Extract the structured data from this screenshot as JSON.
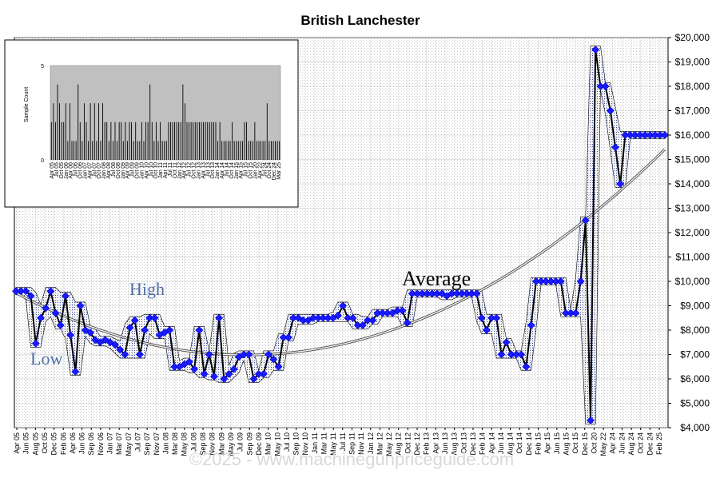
{
  "chart_data": [
    {
      "type": "line",
      "title": "British Lanchester",
      "ylim": [
        4000,
        20000
      ],
      "y_ticks": [
        "$4,000",
        "$5,000",
        "$6,000",
        "$7,000",
        "$8,000",
        "$9,000",
        "$10,000",
        "$11,000",
        "$12,000",
        "$13,000",
        "$14,000",
        "$15,000",
        "$16,000",
        "$17,000",
        "$18,000",
        "$19,000",
        "$20,000"
      ],
      "x_ticks": [
        "Apr 05",
        "Jun 05",
        "Aug 05",
        "Oct 05",
        "Dec 05",
        "Feb 06",
        "Apr 06",
        "Jun 06",
        "Sep 06",
        "Nov 06",
        "Jan 07",
        "Mar 07",
        "May 07",
        "Jul 07",
        "Sep 07",
        "Nov 07",
        "Jan 08",
        "Mar 08",
        "May 08",
        "Jul 08",
        "Sep 08",
        "Nov 08",
        "Mar 09",
        "May 09",
        "Jul 09",
        "Sep 09",
        "Dec 09",
        "Mar 10",
        "May 10",
        "Jul 10",
        "Sep 10",
        "Nov 10",
        "Jan 11",
        "Mar 11",
        "May 11",
        "Jul 11",
        "Sep 11",
        "Nov 11",
        "Jan 12",
        "Mar 12",
        "May 12",
        "Aug 12",
        "Oct 12",
        "Dec 12",
        "Feb 13",
        "Apr 13",
        "Jun 13",
        "Aug 13",
        "Oct 13",
        "Dec 13",
        "Feb 14",
        "Apr 14",
        "Jun 14",
        "Aug 14",
        "Oct 14",
        "Dec 14",
        "Feb 15",
        "Apr 15",
        "Jun 15",
        "Aug 15",
        "Oct 15",
        "Dec 15",
        "Oct 20",
        "May 22",
        "Apr 24",
        "Jun 24",
        "Aug 24",
        "Oct 24",
        "Dec 24",
        "Feb 25"
      ],
      "grid": true,
      "annotations": [
        "High",
        "Low",
        "Average"
      ],
      "watermark": "©2025 - www.machinegunpriceguide.com",
      "series": [
        {
          "values": [
            9600,
            9600,
            9600,
            9400,
            7450,
            8500,
            8900,
            9600,
            8700,
            8200,
            9400,
            7800,
            6300,
            9000,
            8000,
            7900,
            7600,
            7500,
            7600,
            7500,
            7400,
            7200,
            7000,
            8100,
            8400,
            7000,
            8000,
            8500,
            8500,
            7800,
            7900,
            8000,
            6500,
            6500,
            6600,
            6700,
            6400,
            8000,
            6200,
            7000,
            6100,
            8500,
            6000,
            6200,
            6400,
            6900,
            7000,
            7000,
            6000,
            6200,
            6200,
            7000,
            6800,
            6500,
            7700,
            7700,
            8500,
            8500,
            8400,
            8400,
            8500,
            8500,
            8500,
            8500,
            8500,
            8600,
            9000,
            8500,
            8500,
            8200,
            8200,
            8400,
            8400,
            8700,
            8700,
            8700,
            8700,
            8800,
            8800,
            8300,
            9500,
            9500,
            9500,
            9500,
            9500,
            9500,
            9500,
            9400,
            9500,
            9500,
            9500,
            9500,
            9500,
            9500,
            8500,
            8000,
            8500,
            8500,
            7000,
            7500,
            7000,
            7000,
            7000,
            6500,
            8200,
            10000,
            10000,
            10000,
            10000,
            10000,
            10000,
            8700,
            8700,
            8700,
            10000,
            12500,
            4300,
            19500,
            18000,
            18000,
            17000,
            15500,
            14000,
            16000,
            16000,
            16000,
            16000,
            16000,
            16000,
            16000,
            16000,
            16000
          ]
        }
      ]
    },
    {
      "type": "bar",
      "ylabel": "Sample Count",
      "ylim": [
        0,
        5
      ],
      "y_ticks": [
        "0",
        "5"
      ],
      "x_ticks": [
        "Apr 05",
        "Jul 05",
        "Oct 05",
        "Jan 06",
        "Apr 06",
        "Jul 06",
        "Oct 06",
        "Jan 07",
        "Apr 07",
        "Jul 07",
        "Oct 07",
        "Jan 08",
        "Apr 08",
        "Jul 08",
        "Oct 08",
        "Jan 09",
        "Apr 09",
        "Jul 09",
        "Oct 09",
        "Jan 10",
        "Apr 10",
        "Jul 10",
        "Oct 10",
        "Jan 11",
        "Apr 11",
        "Jul 11",
        "Oct 11",
        "Jan 12",
        "Apr 12",
        "Jul 12",
        "Oct 12",
        "Jan 13",
        "Apr 13",
        "Jul 13",
        "Oct 13",
        "Jan 14",
        "Apr 14",
        "Jul 14",
        "Oct 14",
        "Jan 15",
        "Apr 15",
        "Jul 15",
        "Oct 15",
        "Jan 20",
        "Apr 22",
        "Jul 24",
        "Oct 24",
        "Dec 24",
        "Mar 25"
      ],
      "values": [
        2,
        3,
        2,
        4,
        3,
        2,
        2,
        3,
        1,
        3,
        1,
        1,
        1,
        4,
        2,
        1,
        3,
        2,
        1,
        3,
        1,
        3,
        1,
        3,
        1,
        3,
        2,
        2,
        1,
        2,
        1,
        2,
        1,
        2,
        2,
        1,
        2,
        1,
        2,
        2,
        1,
        2,
        1,
        1,
        2,
        1,
        2,
        2,
        4,
        2,
        1,
        2,
        1,
        2,
        1,
        1,
        1,
        2,
        2,
        2,
        2,
        2,
        2,
        2,
        4,
        3,
        2,
        2,
        2,
        2,
        2,
        2,
        2,
        2,
        2,
        2,
        2,
        2,
        2,
        2,
        2,
        1,
        2,
        1,
        1,
        1,
        1,
        1,
        2,
        1,
        1,
        1,
        1,
        1,
        2,
        2,
        1,
        1,
        1,
        2,
        1,
        1,
        1,
        1,
        1,
        3,
        1,
        1,
        1,
        1,
        1,
        1
      ]
    }
  ]
}
